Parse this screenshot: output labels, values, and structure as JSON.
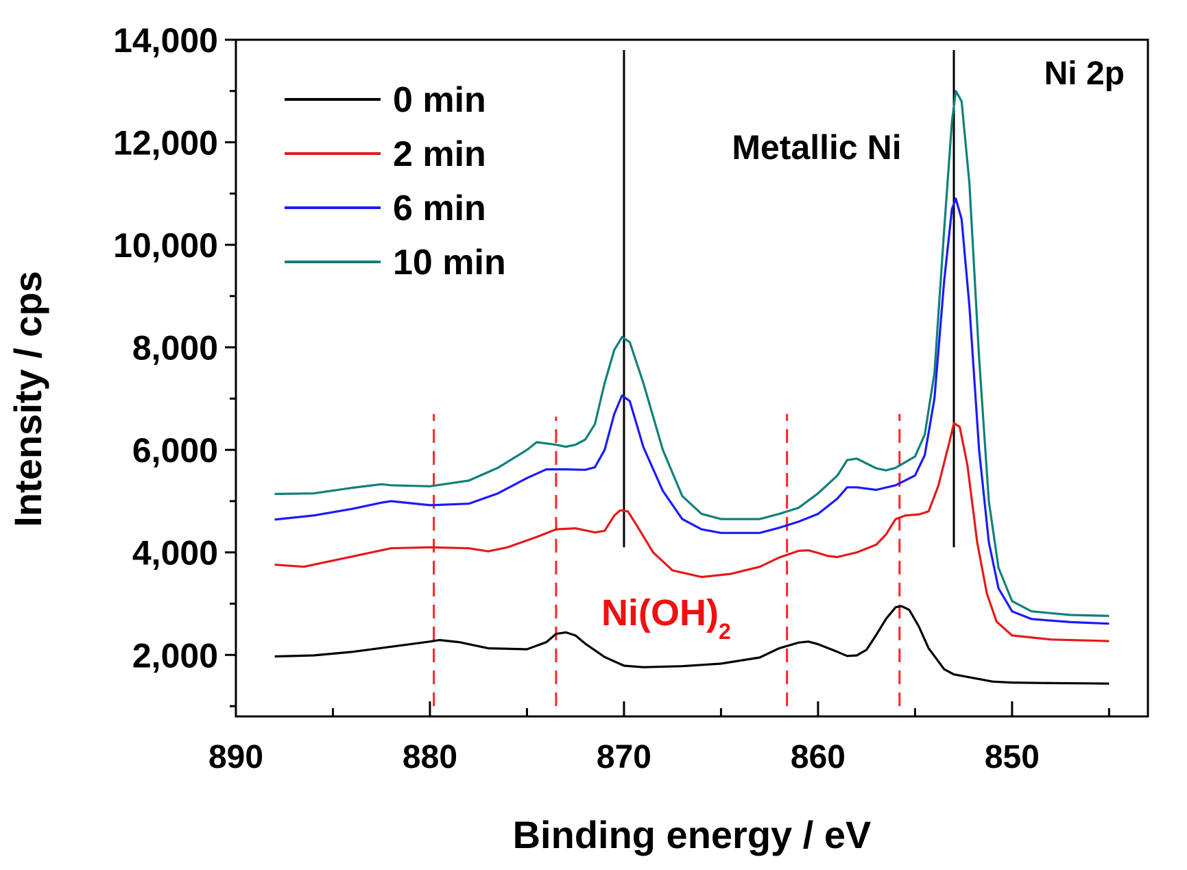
{
  "chart_data": {
    "type": "line",
    "title": "",
    "panel_label": "Ni 2p",
    "xlabel": "Binding energy / eV",
    "ylabel": "Intensity / cps",
    "xlim": [
      890,
      843
    ],
    "ylim": [
      800,
      14000
    ],
    "x_reversed": true,
    "xticks": [
      890,
      880,
      870,
      860,
      850
    ],
    "xtick_labels": [
      "890",
      "880",
      "870",
      "860",
      "850"
    ],
    "yticks": [
      2000,
      4000,
      6000,
      8000,
      10000,
      12000,
      14000
    ],
    "ytick_labels": [
      "2,000",
      "4,000",
      "6,000",
      "8,000",
      "10,000",
      "12,000",
      "14,000"
    ],
    "legend_position": "top-left",
    "series": [
      {
        "name": "0 min",
        "color": "#000000",
        "points": [
          [
            888,
            1970
          ],
          [
            886,
            1990
          ],
          [
            884,
            2060
          ],
          [
            882,
            2160
          ],
          [
            880,
            2260
          ],
          [
            879.5,
            2290
          ],
          [
            878.5,
            2250
          ],
          [
            877,
            2130
          ],
          [
            875,
            2110
          ],
          [
            874,
            2250
          ],
          [
            873.5,
            2410
          ],
          [
            873,
            2440
          ],
          [
            872.5,
            2380
          ],
          [
            872,
            2220
          ],
          [
            871,
            1960
          ],
          [
            870,
            1790
          ],
          [
            869,
            1760
          ],
          [
            867,
            1780
          ],
          [
            865,
            1830
          ],
          [
            863,
            1950
          ],
          [
            862,
            2130
          ],
          [
            861,
            2240
          ],
          [
            860.5,
            2260
          ],
          [
            860,
            2210
          ],
          [
            859,
            2060
          ],
          [
            858.5,
            1980
          ],
          [
            858,
            1990
          ],
          [
            857.5,
            2100
          ],
          [
            857,
            2390
          ],
          [
            856.5,
            2700
          ],
          [
            856,
            2930
          ],
          [
            855.7,
            2950
          ],
          [
            855.3,
            2880
          ],
          [
            854.8,
            2550
          ],
          [
            854.3,
            2130
          ],
          [
            853.5,
            1720
          ],
          [
            853,
            1620
          ],
          [
            852,
            1550
          ],
          [
            851,
            1480
          ],
          [
            850,
            1460
          ],
          [
            848,
            1450
          ],
          [
            846,
            1445
          ],
          [
            845,
            1440
          ]
        ]
      },
      {
        "name": "2 min",
        "color": "#e41a1c",
        "points": [
          [
            888,
            3760
          ],
          [
            886.5,
            3720
          ],
          [
            885,
            3840
          ],
          [
            883,
            4000
          ],
          [
            882,
            4080
          ],
          [
            880,
            4100
          ],
          [
            878,
            4080
          ],
          [
            877,
            4020
          ],
          [
            876,
            4100
          ],
          [
            874.5,
            4300
          ],
          [
            873.5,
            4450
          ],
          [
            872.5,
            4470
          ],
          [
            871.5,
            4390
          ],
          [
            871,
            4420
          ],
          [
            870.5,
            4720
          ],
          [
            870.2,
            4820
          ],
          [
            869.8,
            4800
          ],
          [
            869.3,
            4500
          ],
          [
            868.5,
            4000
          ],
          [
            867.5,
            3650
          ],
          [
            866,
            3520
          ],
          [
            864.5,
            3580
          ],
          [
            863,
            3720
          ],
          [
            862,
            3900
          ],
          [
            861,
            4030
          ],
          [
            860.5,
            4040
          ],
          [
            860,
            3990
          ],
          [
            859.5,
            3930
          ],
          [
            859,
            3910
          ],
          [
            858,
            4000
          ],
          [
            857,
            4150
          ],
          [
            856.5,
            4350
          ],
          [
            856,
            4650
          ],
          [
            855.5,
            4720
          ],
          [
            854.8,
            4740
          ],
          [
            854.3,
            4800
          ],
          [
            853.8,
            5300
          ],
          [
            853.2,
            6200
          ],
          [
            853,
            6520
          ],
          [
            852.7,
            6450
          ],
          [
            852.3,
            5700
          ],
          [
            851.8,
            4200
          ],
          [
            851.3,
            3200
          ],
          [
            850.8,
            2650
          ],
          [
            850,
            2380
          ],
          [
            848,
            2300
          ],
          [
            846,
            2280
          ],
          [
            845,
            2270
          ]
        ]
      },
      {
        "name": "6 min",
        "color": "#1a1aff",
        "points": [
          [
            888,
            4640
          ],
          [
            886,
            4720
          ],
          [
            884,
            4850
          ],
          [
            882.5,
            4970
          ],
          [
            882,
            5000
          ],
          [
            880,
            4920
          ],
          [
            878,
            4950
          ],
          [
            876.5,
            5150
          ],
          [
            875,
            5450
          ],
          [
            874,
            5620
          ],
          [
            873,
            5620
          ],
          [
            872,
            5610
          ],
          [
            871.5,
            5660
          ],
          [
            871,
            6000
          ],
          [
            870.5,
            6700
          ],
          [
            870.1,
            7060
          ],
          [
            869.7,
            6950
          ],
          [
            869,
            6050
          ],
          [
            868,
            5200
          ],
          [
            867,
            4650
          ],
          [
            866,
            4450
          ],
          [
            865,
            4380
          ],
          [
            863,
            4380
          ],
          [
            862,
            4480
          ],
          [
            861,
            4600
          ],
          [
            860,
            4750
          ],
          [
            859,
            5050
          ],
          [
            858.5,
            5270
          ],
          [
            858,
            5270
          ],
          [
            857,
            5220
          ],
          [
            856,
            5310
          ],
          [
            855,
            5500
          ],
          [
            854.5,
            5900
          ],
          [
            854,
            7000
          ],
          [
            853.5,
            9300
          ],
          [
            853.1,
            10700
          ],
          [
            852.9,
            10900
          ],
          [
            852.6,
            10500
          ],
          [
            852.2,
            8800
          ],
          [
            851.7,
            6000
          ],
          [
            851.2,
            4200
          ],
          [
            850.7,
            3300
          ],
          [
            850,
            2850
          ],
          [
            849,
            2700
          ],
          [
            847,
            2640
          ],
          [
            845,
            2610
          ]
        ]
      },
      {
        "name": "10 min",
        "color": "#0f807a",
        "points": [
          [
            888,
            5140
          ],
          [
            886,
            5150
          ],
          [
            884,
            5260
          ],
          [
            882.5,
            5330
          ],
          [
            882,
            5310
          ],
          [
            880,
            5290
          ],
          [
            878,
            5400
          ],
          [
            876.5,
            5650
          ],
          [
            875,
            6000
          ],
          [
            874.5,
            6150
          ],
          [
            873.5,
            6100
          ],
          [
            873,
            6060
          ],
          [
            872.5,
            6100
          ],
          [
            872,
            6200
          ],
          [
            871.5,
            6500
          ],
          [
            871,
            7300
          ],
          [
            870.5,
            7950
          ],
          [
            870.1,
            8200
          ],
          [
            869.7,
            8100
          ],
          [
            869,
            7300
          ],
          [
            868,
            6000
          ],
          [
            867,
            5100
          ],
          [
            866,
            4750
          ],
          [
            865,
            4650
          ],
          [
            863,
            4650
          ],
          [
            862,
            4750
          ],
          [
            861,
            4870
          ],
          [
            860,
            5150
          ],
          [
            859,
            5500
          ],
          [
            858.5,
            5800
          ],
          [
            858,
            5830
          ],
          [
            857,
            5640
          ],
          [
            856.5,
            5600
          ],
          [
            856,
            5650
          ],
          [
            855,
            5870
          ],
          [
            854.5,
            6300
          ],
          [
            854,
            7500
          ],
          [
            853.5,
            10300
          ],
          [
            853.1,
            12400
          ],
          [
            852.9,
            13000
          ],
          [
            852.6,
            12800
          ],
          [
            852.2,
            11200
          ],
          [
            851.7,
            7800
          ],
          [
            851.2,
            5000
          ],
          [
            850.7,
            3700
          ],
          [
            850,
            3050
          ],
          [
            849,
            2850
          ],
          [
            847,
            2780
          ],
          [
            845,
            2760
          ]
        ]
      }
    ],
    "reference_lines": [
      {
        "name": "metallic-ni-line-870",
        "x": 870,
        "y1": 4100,
        "y2": 13800,
        "color": "#000000",
        "style": "solid"
      },
      {
        "name": "metallic-ni-line-853",
        "x": 853,
        "y1": 4100,
        "y2": 13800,
        "color": "#000000",
        "style": "solid"
      },
      {
        "name": "nioh2-line-880",
        "x": 879.8,
        "y1": 1000,
        "y2": 6700,
        "color": "#ff2222",
        "style": "dashed"
      },
      {
        "name": "nioh2-line-873",
        "x": 873.5,
        "y1": 1000,
        "y2": 6650,
        "color": "#ff2222",
        "style": "dashed"
      },
      {
        "name": "nioh2-line-861",
        "x": 861.6,
        "y1": 1000,
        "y2": 6700,
        "color": "#ff2222",
        "style": "dashed"
      },
      {
        "name": "nioh2-line-856",
        "x": 855.8,
        "y1": 1000,
        "y2": 6700,
        "color": "#ff2222",
        "style": "dashed"
      }
    ],
    "annotations": {
      "metallic": {
        "text": "Metallic Ni",
        "color": "#000000"
      },
      "nioh2": {
        "text": "Ni(OH)",
        "subscript": "2",
        "color": "#ee1111"
      }
    }
  }
}
